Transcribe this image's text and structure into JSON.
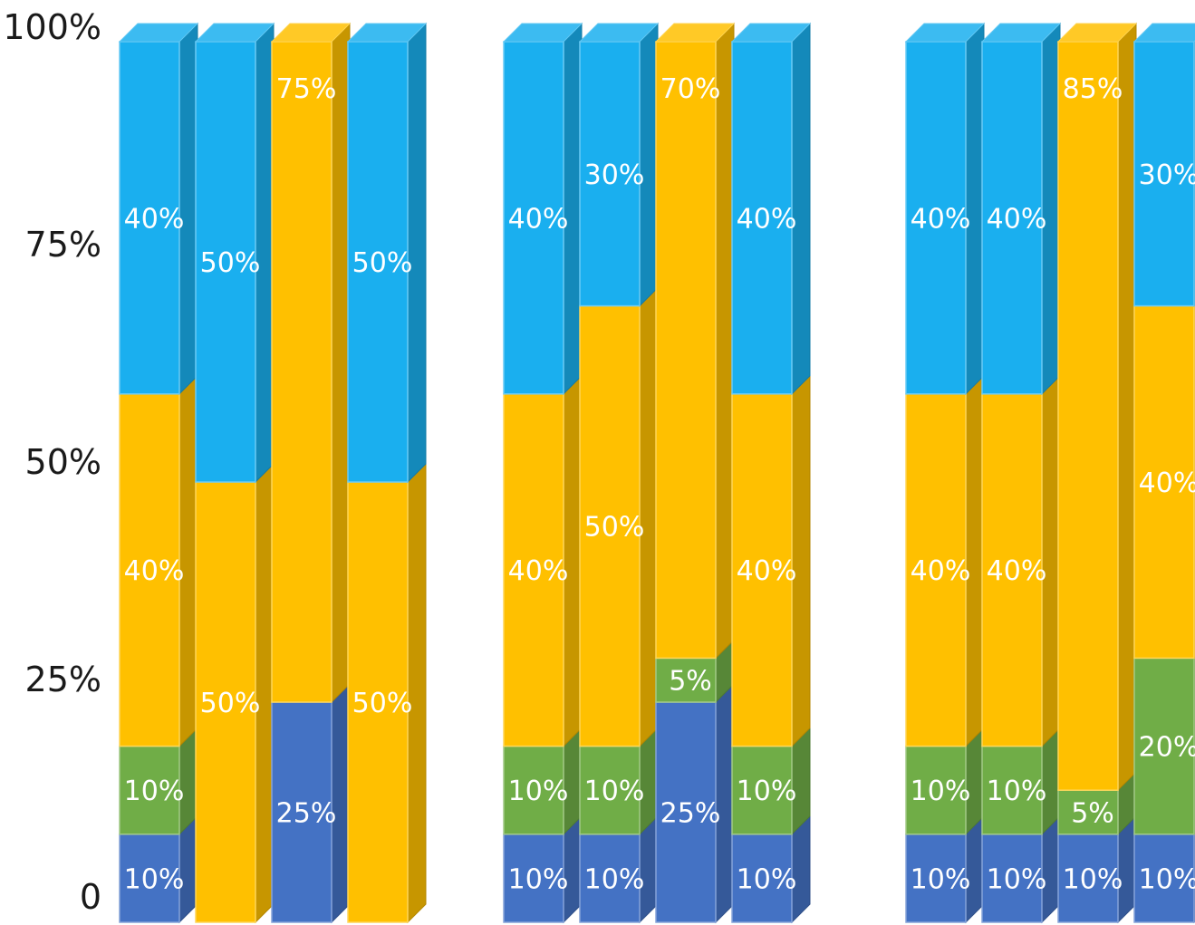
{
  "chart_data": {
    "type": "bar",
    "stacked": true,
    "three_d": true,
    "ylim": [
      0,
      100
    ],
    "y_ticks": [
      "0",
      "25%",
      "50%",
      "75%",
      "100%"
    ],
    "groups": [
      {
        "bars": [
          {
            "segments": [
              {
                "value": 10,
                "label": "10%",
                "color": "#4472C4"
              },
              {
                "value": 10,
                "label": "10%",
                "color": "#70AD47"
              },
              {
                "value": 40,
                "label": "40%",
                "color": "#FFC000"
              },
              {
                "value": 40,
                "label": "40%",
                "color": "#1AAFEF"
              }
            ]
          },
          {
            "segments": [
              {
                "value": 50,
                "label": "50%",
                "color": "#FFC000"
              },
              {
                "value": 50,
                "label": "50%",
                "color": "#1AAFEF"
              }
            ]
          },
          {
            "segments": [
              {
                "value": 25,
                "label": "25%",
                "color": "#4472C4"
              },
              {
                "value": 75,
                "label": "75%",
                "color": "#FFC000"
              }
            ]
          },
          {
            "segments": [
              {
                "value": 50,
                "label": "50%",
                "color": "#FFC000"
              },
              {
                "value": 50,
                "label": "50%",
                "color": "#1AAFEF"
              }
            ]
          }
        ]
      },
      {
        "bars": [
          {
            "segments": [
              {
                "value": 10,
                "label": "10%",
                "color": "#4472C4"
              },
              {
                "value": 10,
                "label": "10%",
                "color": "#70AD47"
              },
              {
                "value": 40,
                "label": "40%",
                "color": "#FFC000"
              },
              {
                "value": 40,
                "label": "40%",
                "color": "#1AAFEF"
              }
            ]
          },
          {
            "segments": [
              {
                "value": 10,
                "label": "10%",
                "color": "#4472C4"
              },
              {
                "value": 10,
                "label": "10%",
                "color": "#70AD47"
              },
              {
                "value": 50,
                "label": "50%",
                "color": "#FFC000"
              },
              {
                "value": 30,
                "label": "30%",
                "color": "#1AAFEF"
              }
            ]
          },
          {
            "segments": [
              {
                "value": 25,
                "label": "25%",
                "color": "#4472C4"
              },
              {
                "value": 5,
                "label": "5%",
                "color": "#70AD47"
              },
              {
                "value": 70,
                "label": "70%",
                "color": "#FFC000"
              }
            ]
          },
          {
            "segments": [
              {
                "value": 10,
                "label": "10%",
                "color": "#4472C4"
              },
              {
                "value": 10,
                "label": "10%",
                "color": "#70AD47"
              },
              {
                "value": 40,
                "label": "40%",
                "color": "#FFC000"
              },
              {
                "value": 40,
                "label": "40%",
                "color": "#1AAFEF"
              }
            ]
          }
        ]
      },
      {
        "bars": [
          {
            "segments": [
              {
                "value": 10,
                "label": "10%",
                "color": "#4472C4"
              },
              {
                "value": 10,
                "label": "10%",
                "color": "#70AD47"
              },
              {
                "value": 40,
                "label": "40%",
                "color": "#FFC000"
              },
              {
                "value": 40,
                "label": "40%",
                "color": "#1AAFEF"
              }
            ]
          },
          {
            "segments": [
              {
                "value": 10,
                "label": "10%",
                "color": "#4472C4"
              },
              {
                "value": 10,
                "label": "10%",
                "color": "#70AD47"
              },
              {
                "value": 40,
                "label": "40%",
                "color": "#FFC000"
              },
              {
                "value": 40,
                "label": "40%",
                "color": "#1AAFEF"
              }
            ]
          },
          {
            "segments": [
              {
                "value": 10,
                "label": "10%",
                "color": "#4472C4"
              },
              {
                "value": 5,
                "label": "5%",
                "color": "#70AD47"
              },
              {
                "value": 85,
                "label": "85%",
                "color": "#FFC000"
              }
            ]
          },
          {
            "segments": [
              {
                "value": 10,
                "label": "10%",
                "color": "#4472C4"
              },
              {
                "value": 20,
                "label": "20%",
                "color": "#70AD47"
              },
              {
                "value": 40,
                "label": "40%",
                "color": "#FFC000"
              },
              {
                "value": 30,
                "label": "30%",
                "color": "#1AAFEF"
              }
            ]
          }
        ]
      }
    ]
  }
}
